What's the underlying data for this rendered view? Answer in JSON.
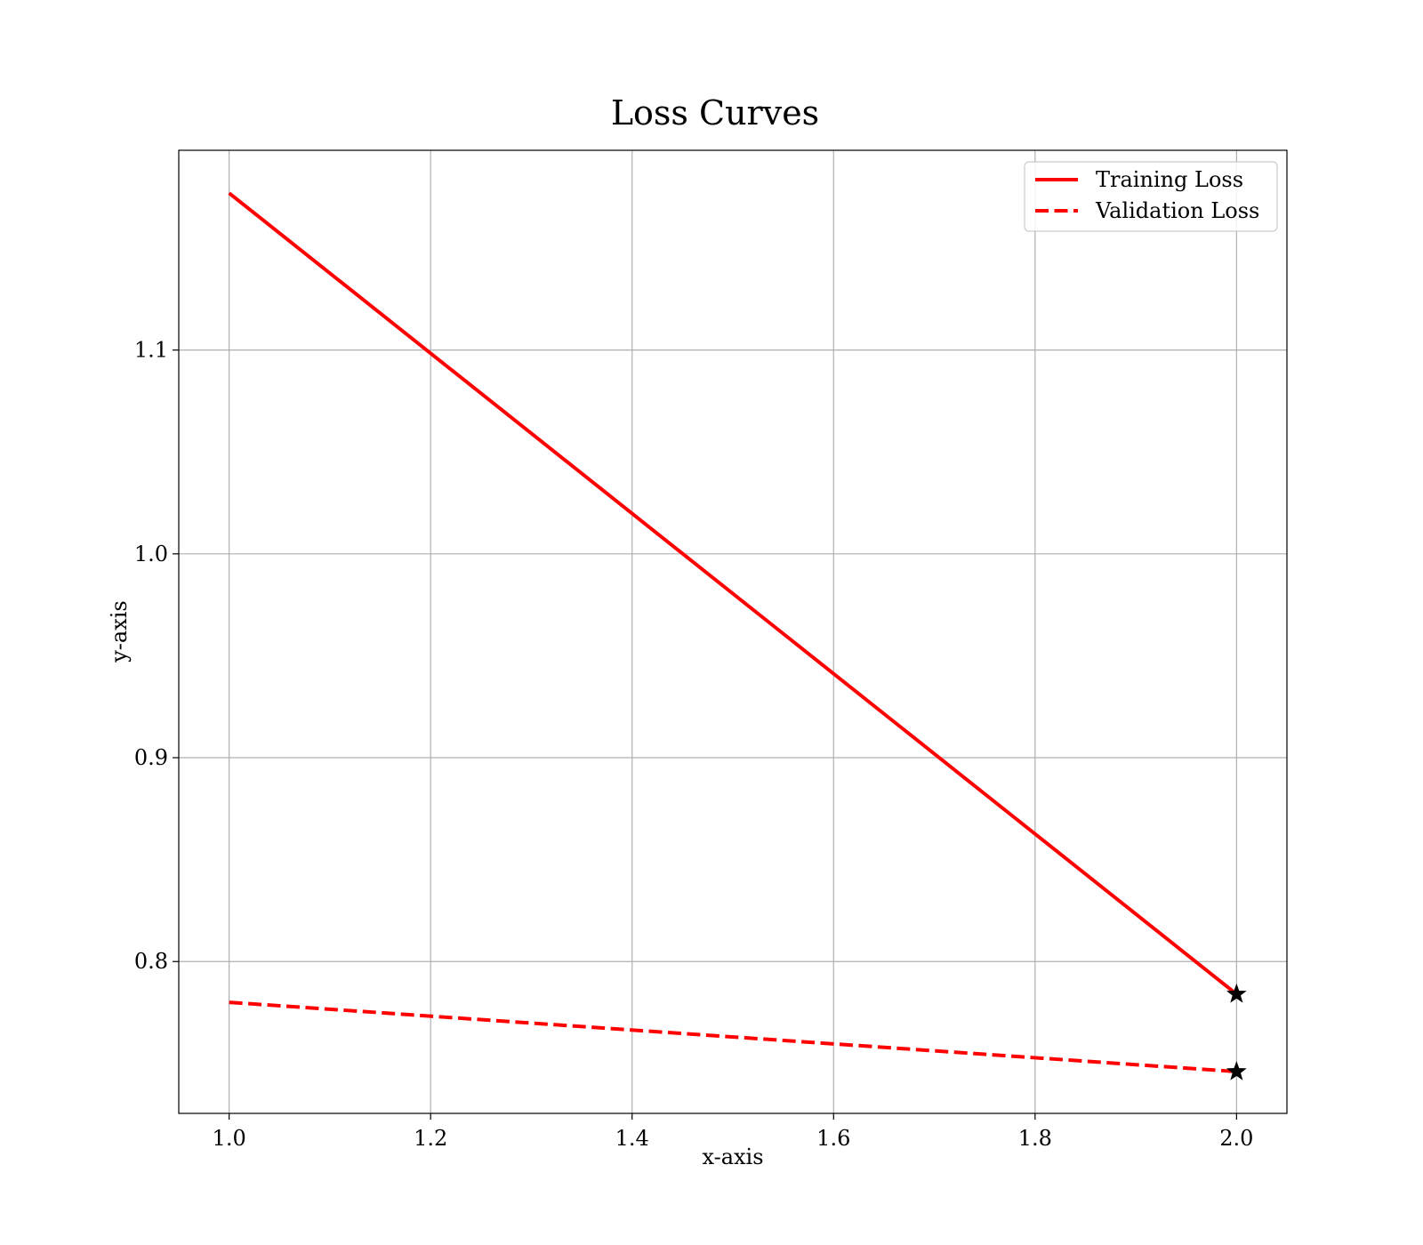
{
  "chart_data": {
    "type": "line",
    "title": "Loss Curves",
    "xlabel": "x-axis",
    "ylabel": "y-axis",
    "xlim": [
      0.95,
      2.05
    ],
    "ylim": [
      0.7255,
      1.198
    ],
    "x_ticks": [
      "1.0",
      "1.2",
      "1.4",
      "1.6",
      "1.8",
      "2.0"
    ],
    "x_tick_values": [
      1.0,
      1.2,
      1.4,
      1.6,
      1.8,
      2.0
    ],
    "y_ticks": [
      "0.8",
      "0.9",
      "1.0",
      "1.1"
    ],
    "y_tick_values": [
      0.8,
      0.9,
      1.0,
      1.1
    ],
    "grid": true,
    "legend_position": "top-right",
    "series": [
      {
        "name": "Training Loss",
        "x": [
          1.0,
          2.0
        ],
        "y": [
          1.177,
          0.784
        ],
        "color": "#ff0000",
        "line_style": "solid",
        "end_marker": "star"
      },
      {
        "name": "Validation Loss",
        "x": [
          1.0,
          2.0
        ],
        "y": [
          0.78,
          0.746
        ],
        "color": "#ff0000",
        "line_style": "dashed",
        "end_marker": "star"
      }
    ]
  }
}
